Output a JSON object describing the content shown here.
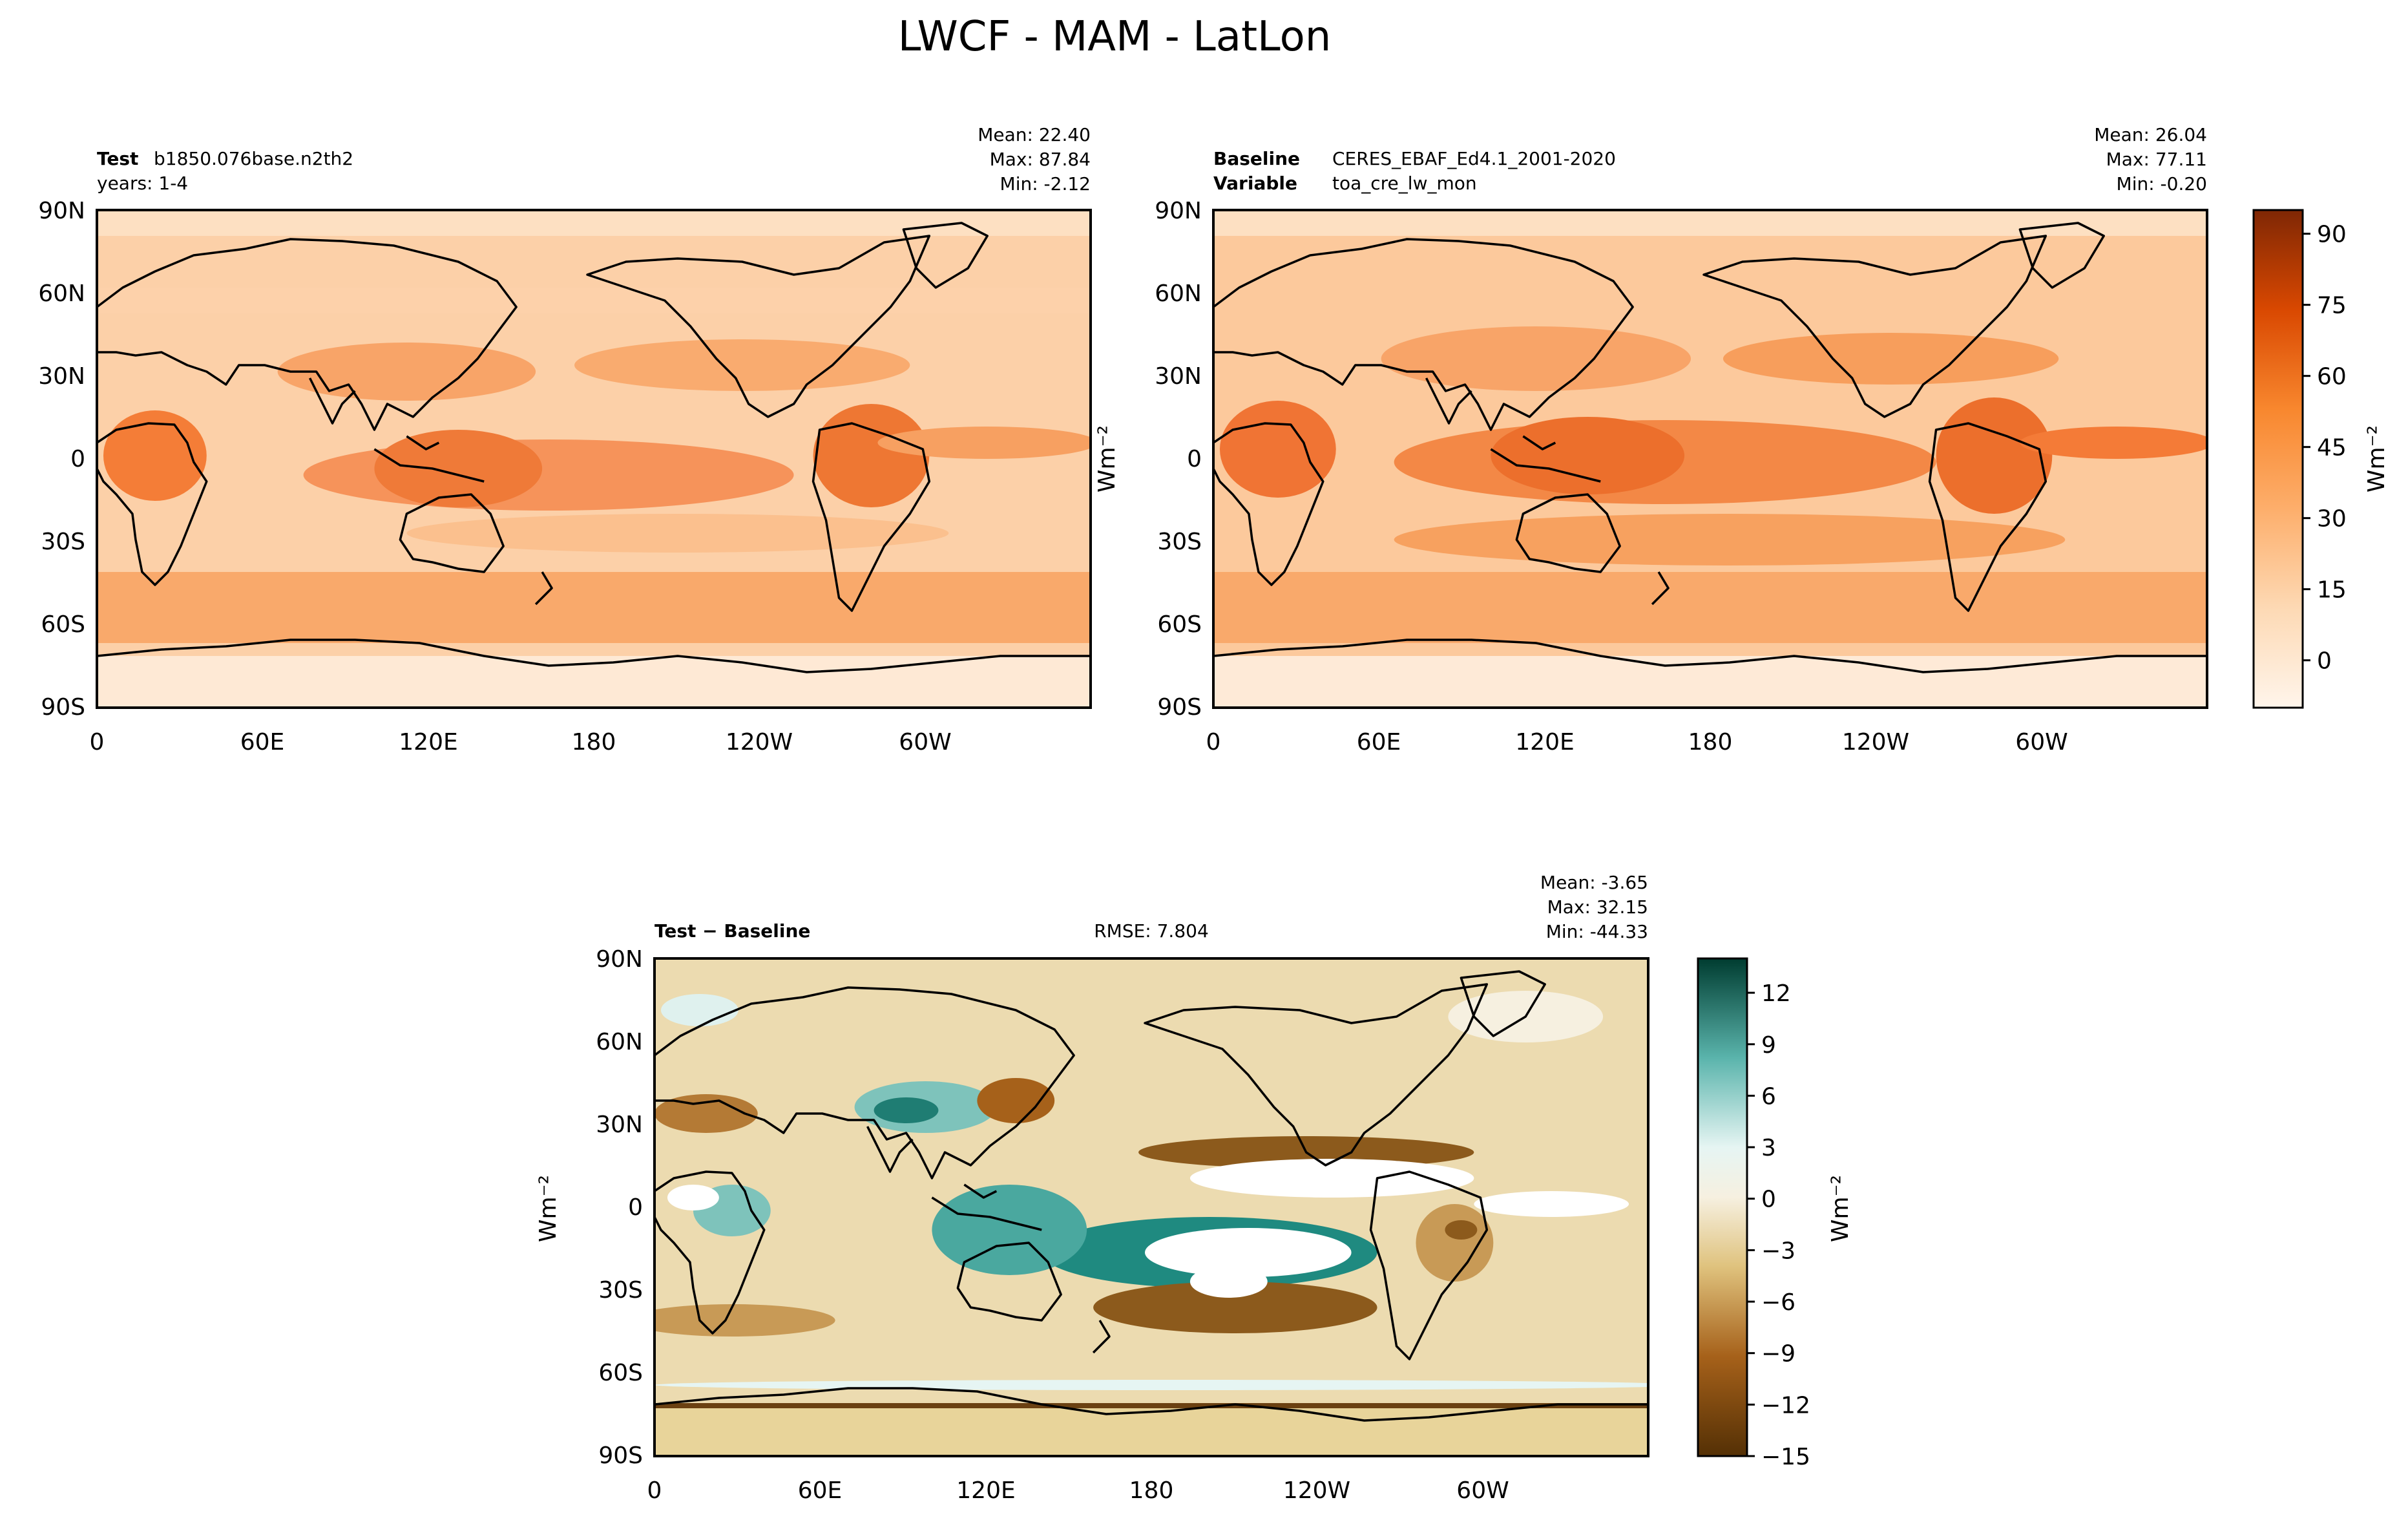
{
  "figure": {
    "title": "LWCF - MAM - LatLon"
  },
  "axes": {
    "lat_ticks": [
      "90N",
      "60N",
      "30N",
      "0",
      "30S",
      "60S",
      "90S"
    ],
    "lon_ticks": [
      "0",
      "60E",
      "120E",
      "180",
      "120W",
      "60W"
    ]
  },
  "panels": {
    "test": {
      "label_bold": "Test",
      "label_text": "b1850.076base.n2th2",
      "label2_text": "years: 1-4",
      "stats": [
        "Mean: 22.40",
        "Max: 87.84",
        "Min: -2.12"
      ]
    },
    "baseline": {
      "label_bold": "Baseline",
      "label_text": "CERES_EBAF_Ed4.1_2001-2020",
      "label2_bold": "Variable",
      "label2_text": "toa_cre_lw_mon",
      "stats": [
        "Mean: 26.04",
        "Max: 77.11",
        "Min: -0.20"
      ],
      "ylabel": "Wm⁻²"
    },
    "diff": {
      "label_bold": "Test − Baseline",
      "rmse": "RMSE: 7.804",
      "stats": [
        "Mean: -3.65",
        "Max: 32.15",
        "Min: -44.33"
      ],
      "ylabel": "Wm⁻²"
    }
  },
  "colorbars": {
    "main": {
      "ticks": [
        "90",
        "75",
        "60",
        "45",
        "30",
        "15",
        "0"
      ],
      "range": [
        -10,
        95
      ],
      "label": "Wm⁻²"
    },
    "diff": {
      "ticks": [
        "12",
        "9",
        "6",
        "3",
        "0",
        "−3",
        "−6",
        "−9",
        "−12",
        "−15"
      ],
      "range": [
        -15,
        14
      ],
      "label": "Wm⁻²"
    }
  },
  "colors": {
    "ocean_base": "#fbcda4",
    "diff_base": "#ecdbb0",
    "coast": "#000000"
  }
}
